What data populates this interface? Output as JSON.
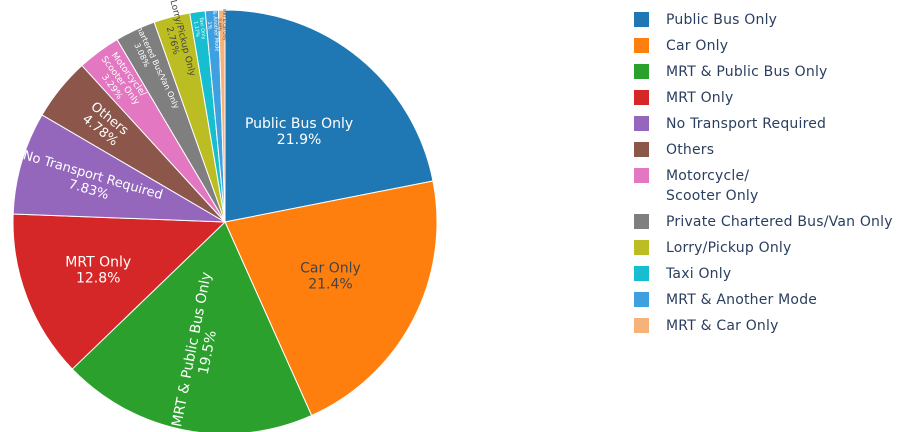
{
  "chart_data": {
    "type": "pie",
    "categories": [
      "Public Bus Only",
      "Car Only",
      "MRT & Public Bus Only",
      "MRT Only",
      "No Transport Required",
      "Others",
      "Motorcycle/\nScooter Only",
      "Private Chartered Bus/Van Only",
      "Lorry/Pickup Only",
      "Taxi Only",
      "MRT & Another Mode",
      "MRT & Car Only"
    ],
    "values": [
      21.9,
      21.4,
      19.5,
      12.8,
      7.83,
      4.78,
      3.29,
      3.08,
      2.76,
      1.17,
      1.0,
      0.49
    ],
    "slice_labels": [
      {
        "label": "Public Bus Only",
        "value": "21.9%"
      },
      {
        "label": "Car Only",
        "value": "21.4%"
      },
      {
        "label": "MRT & Public Bus Only",
        "value": "19.5%"
      },
      {
        "label": "MRT Only",
        "value": "12.8%"
      },
      {
        "label": "No Transport Required",
        "value": "7.83%"
      },
      {
        "label": "Others",
        "value": "4.78%"
      },
      {
        "label": "Motorcycle/\nScooter Only",
        "value": "3.29%"
      },
      {
        "label": "Private Chartered Bus/Van Only",
        "value": "3.08%"
      },
      {
        "label": "Lorry/Pickup Only",
        "value": "2.76%"
      },
      {
        "label": "Taxi Only",
        "value": "1.17%"
      },
      {
        "label": "MRT & Another Mode",
        "value": "1%"
      },
      {
        "label": "MRT & Car Only",
        "value": "0.49%"
      }
    ],
    "colors": [
      "#1f77b4",
      "#ff7f0e",
      "#2ca02c",
      "#d62728",
      "#9467bd",
      "#8c564b",
      "#e377c2",
      "#7f7f7f",
      "#bcbd22",
      "#17becf",
      "#3fa0e0",
      "#f7b27a"
    ],
    "legend": "right",
    "direction": "clockwise",
    "start": "12 o'clock"
  }
}
